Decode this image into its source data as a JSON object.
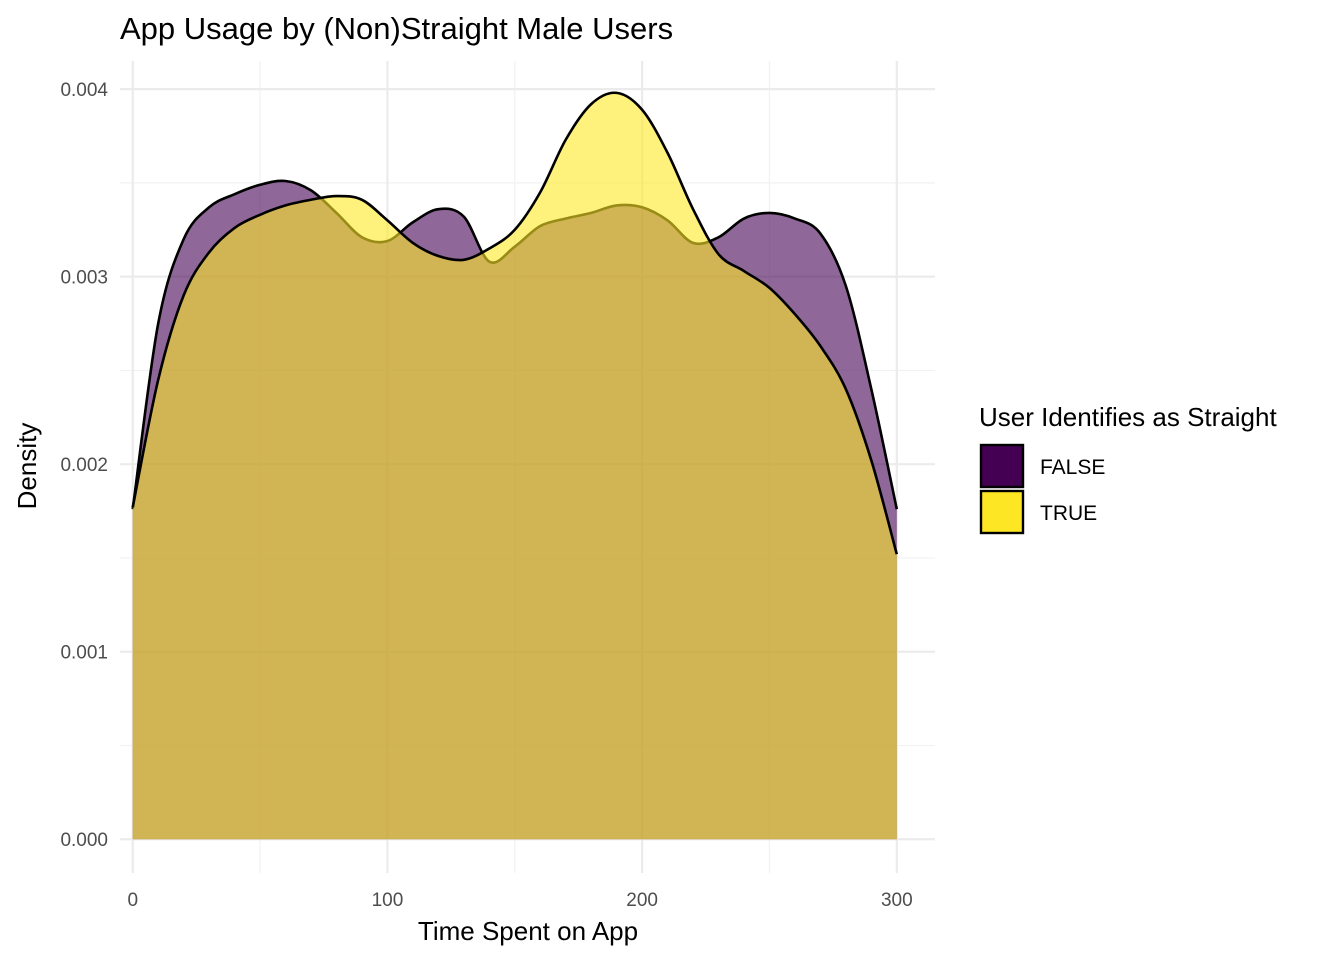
{
  "chart_data": {
    "type": "area",
    "subtype": "density",
    "title": "App Usage by (Non)Straight Male Users",
    "xlabel": "Time Spent on App",
    "ylabel": "Density",
    "xlim": [
      -5,
      315
    ],
    "ylim": [
      -0.00018,
      0.00415
    ],
    "x_ticks": [
      0,
      100,
      200,
      300
    ],
    "x_tick_labels": [
      "0",
      "100",
      "200",
      "300"
    ],
    "x_minor_ticks": [
      50,
      150,
      250
    ],
    "y_ticks": [
      0,
      0.001,
      0.002,
      0.003,
      0.004
    ],
    "y_tick_labels": [
      "0.000",
      "0.001",
      "0.002",
      "0.003",
      "0.004"
    ],
    "y_minor_ticks": [
      0.0005,
      0.0015,
      0.0025,
      0.0035
    ],
    "grid": true,
    "legend": {
      "title": "User Identifies as Straight",
      "position": "right"
    },
    "series": [
      {
        "name": "FALSE",
        "color": "#440154",
        "opacity": 0.6,
        "x": [
          0,
          10,
          20,
          30,
          40,
          50,
          60,
          70,
          80,
          90,
          100,
          110,
          120,
          130,
          140,
          150,
          160,
          170,
          180,
          190,
          200,
          210,
          220,
          230,
          240,
          250,
          260,
          270,
          280,
          290,
          300
        ],
        "y": [
          0.00176,
          0.00275,
          0.0032,
          0.00337,
          0.00344,
          0.00349,
          0.00351,
          0.00346,
          0.00334,
          0.00321,
          0.00319,
          0.00329,
          0.00336,
          0.00332,
          0.00308,
          0.00316,
          0.00327,
          0.00331,
          0.00334,
          0.00338,
          0.00337,
          0.0033,
          0.00318,
          0.00321,
          0.00331,
          0.00334,
          0.00331,
          0.00323,
          0.00295,
          0.0024,
          0.00176
        ]
      },
      {
        "name": "TRUE",
        "color": "#fde725",
        "opacity": 0.6,
        "x": [
          0,
          10,
          20,
          30,
          40,
          50,
          60,
          70,
          80,
          90,
          100,
          110,
          120,
          130,
          140,
          150,
          160,
          170,
          180,
          190,
          200,
          210,
          220,
          230,
          240,
          250,
          260,
          270,
          280,
          290,
          300
        ],
        "y": [
          0.00177,
          0.00245,
          0.0029,
          0.00313,
          0.00326,
          0.00333,
          0.00338,
          0.00341,
          0.00343,
          0.00341,
          0.0033,
          0.00318,
          0.00311,
          0.00309,
          0.00315,
          0.00325,
          0.00345,
          0.00373,
          0.00392,
          0.00398,
          0.00389,
          0.00366,
          0.00336,
          0.00312,
          0.00303,
          0.00294,
          0.0028,
          0.00263,
          0.0024,
          0.00202,
          0.00152
        ]
      }
    ]
  }
}
